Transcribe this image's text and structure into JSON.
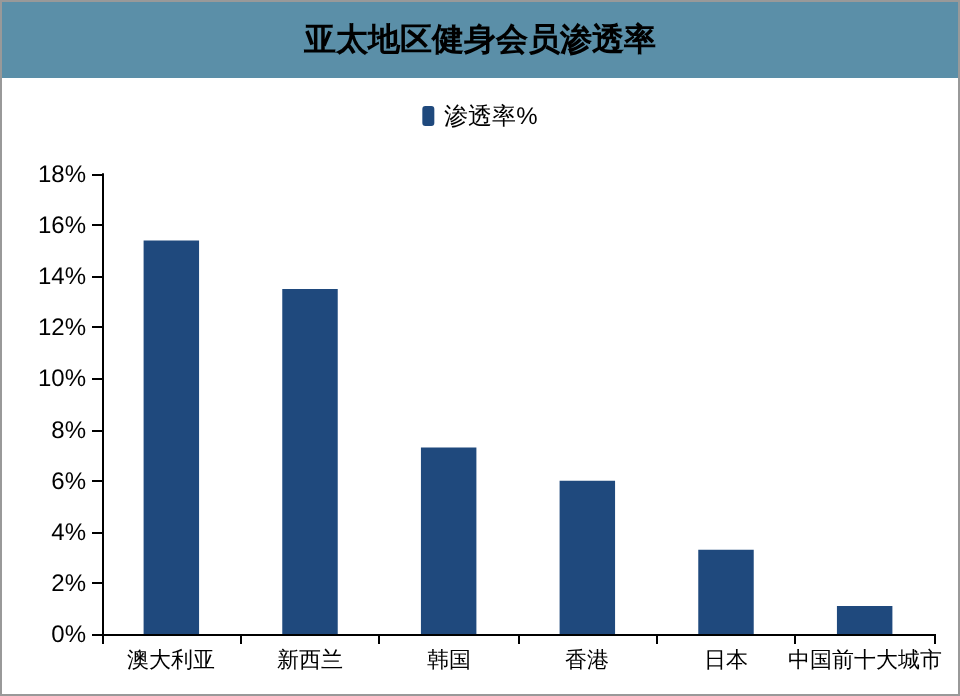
{
  "chart_data": {
    "type": "bar",
    "title": "亚太地区健身会员渗透率",
    "categories": [
      "澳大利亚",
      "新西兰",
      "韩国",
      "香港",
      "日本",
      "中国前十大城市"
    ],
    "series": [
      {
        "name": "渗透率%",
        "color": "#1f497d",
        "values": [
          15.4,
          13.5,
          7.3,
          6.0,
          3.3,
          1.1
        ]
      }
    ],
    "ylim": [
      0,
      18
    ],
    "yticks": [
      {
        "value": 0,
        "label": "0%"
      },
      {
        "value": 2,
        "label": "2%"
      },
      {
        "value": 4,
        "label": "4%"
      },
      {
        "value": 6,
        "label": "6%"
      },
      {
        "value": 8,
        "label": "8%"
      },
      {
        "value": 10,
        "label": "10%"
      },
      {
        "value": 12,
        "label": "12%"
      },
      {
        "value": 14,
        "label": "14%"
      },
      {
        "value": 16,
        "label": "16%"
      },
      {
        "value": 18,
        "label": "18%"
      }
    ],
    "grid": false,
    "legend": "top"
  }
}
